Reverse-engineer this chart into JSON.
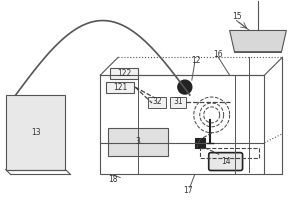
{
  "line_color": "#555555",
  "dark_color": "#222222",
  "dashed_color": "#444444",
  "label_color": "#333333",
  "bg_color": "#f5f5f5"
}
